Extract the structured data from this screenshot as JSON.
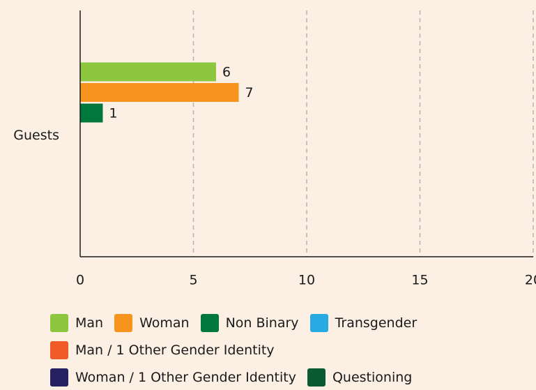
{
  "chart_data": {
    "type": "hbar",
    "categories": [
      "Guests"
    ],
    "series": [
      {
        "name": "Man",
        "color": "#8dc63f",
        "values": [
          6
        ]
      },
      {
        "name": "Woman",
        "color": "#f7941d",
        "values": [
          7
        ]
      },
      {
        "name": "Non Binary",
        "color": "#00773d",
        "values": [
          1
        ]
      },
      {
        "name": "Transgender",
        "color": "#27aae1",
        "values": [
          null
        ]
      },
      {
        "name": "Man / 1 Other Gender Identity",
        "color": "#f15a29",
        "values": [
          null
        ]
      },
      {
        "name": "Woman / 1 Other Gender Identity",
        "color": "#262262",
        "values": [
          null
        ]
      },
      {
        "name": "Questioning",
        "color": "#0b5a32",
        "values": [
          null
        ]
      }
    ],
    "xlim": [
      0,
      20
    ],
    "xticks": [
      0,
      5,
      10,
      15,
      20
    ],
    "grid": true
  }
}
